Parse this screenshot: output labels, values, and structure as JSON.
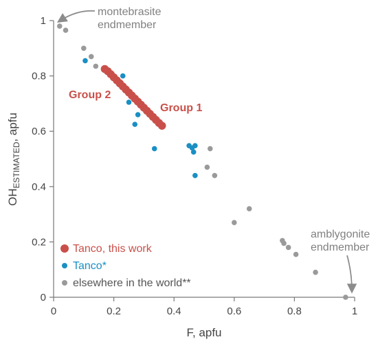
{
  "chart_data": {
    "type": "scatter",
    "xlabel": "F, apfu",
    "ylabel": {
      "base": "OH",
      "sub": "ESTIMATED",
      "tail": ", apfu"
    },
    "xlim": [
      0,
      1
    ],
    "ylim": [
      0,
      1
    ],
    "xticks": [
      0,
      0.2,
      0.4,
      0.6,
      0.8,
      1
    ],
    "yticks": [
      0,
      0.2,
      0.4,
      0.6,
      0.8,
      1
    ],
    "tick_labels_x": [
      "0",
      "0.2",
      "0.4",
      "0.6",
      "0.8",
      "1"
    ],
    "tick_labels_y": [
      "0",
      "0.2",
      "0.4",
      "0.6",
      "0.8",
      "1"
    ],
    "grid": false,
    "legend_position": "bottom-left",
    "series": [
      {
        "name": "Tanco, this work",
        "color": "#c9504a",
        "marker": "large circle",
        "points": [
          [
            0.17,
            0.825
          ],
          [
            0.18,
            0.817
          ],
          [
            0.19,
            0.806
          ],
          [
            0.2,
            0.795
          ],
          [
            0.21,
            0.784
          ],
          [
            0.22,
            0.773
          ],
          [
            0.23,
            0.762
          ],
          [
            0.24,
            0.751
          ],
          [
            0.25,
            0.74
          ],
          [
            0.26,
            0.729
          ],
          [
            0.27,
            0.718
          ],
          [
            0.28,
            0.707
          ],
          [
            0.29,
            0.696
          ],
          [
            0.3,
            0.685
          ],
          [
            0.31,
            0.674
          ],
          [
            0.32,
            0.663
          ],
          [
            0.33,
            0.652
          ],
          [
            0.34,
            0.641
          ],
          [
            0.35,
            0.63
          ],
          [
            0.36,
            0.62
          ]
        ]
      },
      {
        "name": "Tanco*",
        "color": "#1a8fc4",
        "marker": "small circle",
        "points": [
          [
            0.105,
            0.855
          ],
          [
            0.23,
            0.8
          ],
          [
            0.25,
            0.705
          ],
          [
            0.27,
            0.625
          ],
          [
            0.28,
            0.66
          ],
          [
            0.29,
            0.7
          ],
          [
            0.335,
            0.537
          ],
          [
            0.45,
            0.548
          ],
          [
            0.46,
            0.54
          ],
          [
            0.465,
            0.525
          ],
          [
            0.47,
            0.548
          ],
          [
            0.47,
            0.44
          ]
        ]
      },
      {
        "name": "elsewhere in the world**",
        "color": "#9a9a9a",
        "marker": "small circle",
        "points": [
          [
            0.02,
            0.98
          ],
          [
            0.04,
            0.965
          ],
          [
            0.1,
            0.9
          ],
          [
            0.125,
            0.87
          ],
          [
            0.14,
            0.835
          ],
          [
            0.52,
            0.537
          ],
          [
            0.51,
            0.47
          ],
          [
            0.535,
            0.44
          ],
          [
            0.6,
            0.27
          ],
          [
            0.65,
            0.32
          ],
          [
            0.76,
            0.205
          ],
          [
            0.765,
            0.195
          ],
          [
            0.78,
            0.18
          ],
          [
            0.805,
            0.155
          ],
          [
            0.87,
            0.09
          ],
          [
            0.97,
            0.0
          ]
        ]
      }
    ],
    "annotations": [
      {
        "id": "montebrasite",
        "lines": [
          "montebrasite",
          "endmember"
        ],
        "color": "#808080"
      },
      {
        "id": "amblygonite",
        "lines": [
          "amblygonite",
          "endmember"
        ],
        "color": "#808080"
      },
      {
        "id": "group2",
        "text": "Group 2",
        "color": "#c9504a"
      },
      {
        "id": "group1",
        "text": "Group 1",
        "color": "#c9504a"
      }
    ]
  }
}
